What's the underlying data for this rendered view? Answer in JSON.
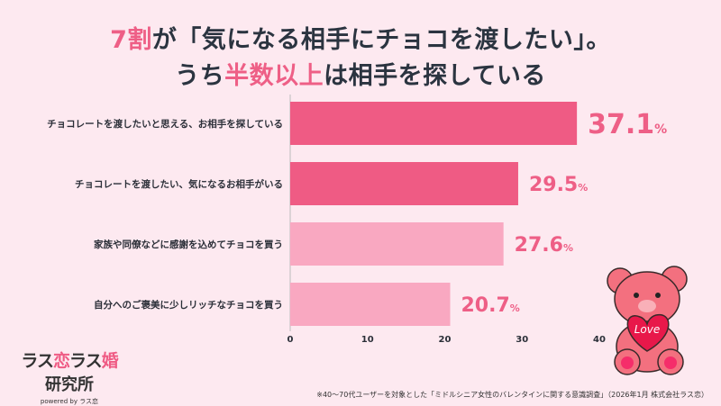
{
  "title": {
    "line1_highlight": "7割",
    "line1_rest": "が「気になる相手にチョコを渡したい」。",
    "line2_pre": "うち",
    "line2_highlight": "半数以上",
    "line2_post": "は相手を探している"
  },
  "colors": {
    "accent": "#ee5f86",
    "bar_dark": "#ef5b84",
    "bar_light": "#f9a8c1",
    "background": "#fde9f0"
  },
  "chart_data": {
    "type": "bar",
    "orientation": "horizontal",
    "categories": [
      "チョコレートを渡したいと思える、お相手を探している",
      "チョコレートを渡したい、気になるお相手がいる",
      "家族や同僚などに感謝を込めてチョコを買う",
      "自分へのご褒美に少しリッチなチョコを買う"
    ],
    "values": [
      37.1,
      29.5,
      27.6,
      20.7
    ],
    "value_suffix": "%",
    "xlim": [
      0,
      40
    ],
    "xticks": [
      0,
      10,
      20,
      30,
      40
    ],
    "grid": false
  },
  "logo": {
    "text1a": "ラス",
    "text1b": "恋",
    "text1c": "ラス",
    "text1d": "婚",
    "text2": "研究所",
    "text3": "powered by ラス恋"
  },
  "bear": {
    "heart_text": "Love"
  },
  "footnote": "※40〜70代ユーザーを対象とした「ミドルシニア女性のバレンタインに関する意識調査」（2026年1月 株式会社ラス恋）"
}
